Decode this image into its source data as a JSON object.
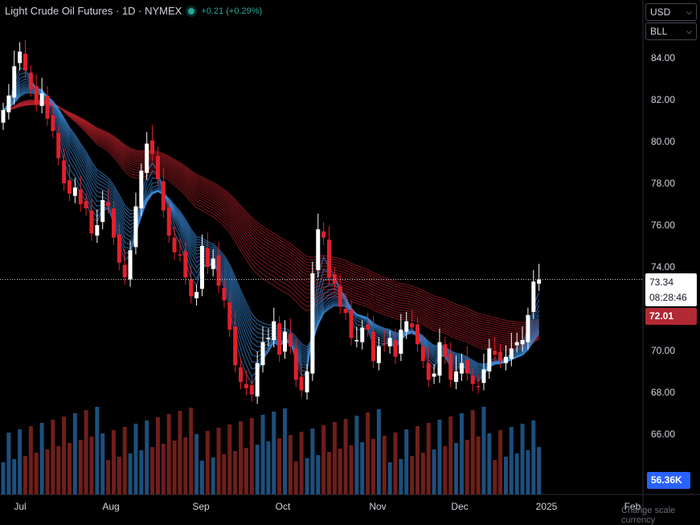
{
  "header": {
    "title": "Light Crude Oil Futures · 1D · NYMEX",
    "change": "+0.21 (+0.29%)"
  },
  "selectors": {
    "currency": "USD",
    "unit": "BLL"
  },
  "tags": {
    "last_price": "73.34",
    "countdown": "08:28:46",
    "ema_value": "72.01",
    "volume": "56.36K"
  },
  "footer": {
    "change_scale": "Change scale currency"
  },
  "colors": {
    "up": "#ffffff",
    "down": "#e0202c",
    "fast_ribbon": "#3d8fe0",
    "slow_ribbon": "#b3202a",
    "vol_up": "#1d4f7c",
    "vol_down": "#6e1f1a"
  },
  "chart_data": {
    "type": "candlestick",
    "ylim": [
      64.5,
      85
    ],
    "yticks": [
      "84.00",
      "82.00",
      "80.00",
      "78.00",
      "76.00",
      "74.00",
      "72.00",
      "70.00",
      "68.00",
      "66.00"
    ],
    "xticks": [
      "Jul",
      "Aug",
      "Sep",
      "Oct",
      "Nov",
      "Dec",
      "2025",
      "Feb"
    ],
    "close": [
      81.5,
      82.2,
      83.6,
      84.3,
      83.4,
      82.5,
      81.8,
      82.3,
      81.1,
      80.5,
      79.2,
      78.0,
      77.5,
      77.8,
      77.0,
      76.8,
      75.6,
      76.0,
      77.2,
      76.9,
      75.4,
      74.2,
      73.5,
      74.8,
      76.9,
      78.6,
      79.9,
      79.4,
      78.2,
      76.7,
      75.5,
      74.7,
      74.6,
      73.5,
      72.6,
      72.8,
      75.0,
      74.0,
      74.4,
      73.1,
      72.4,
      71.0,
      69.3,
      68.5,
      68.2,
      67.9,
      69.4,
      70.4,
      70.6,
      71.4,
      69.8,
      70.9,
      70.2,
      68.6,
      68.1,
      69.0,
      73.7,
      75.8,
      75.4,
      73.5,
      73.2,
      72.1,
      71.8,
      70.6,
      70.5,
      71.1,
      71.0,
      69.5,
      70.2,
      70.3,
      70.6,
      69.7,
      71.0,
      71.4,
      71.1,
      70.3,
      69.5,
      68.6,
      68.9,
      70.4,
      69.7,
      68.6,
      69.0,
      69.4,
      68.9,
      68.4,
      68.3,
      69.1,
      70.1,
      69.8,
      69.5,
      69.7,
      70.1,
      70.4,
      70.5,
      71.7,
      73.3,
      73.4
    ],
    "ema_value": 72.01,
    "volume_last": "56.36K"
  }
}
